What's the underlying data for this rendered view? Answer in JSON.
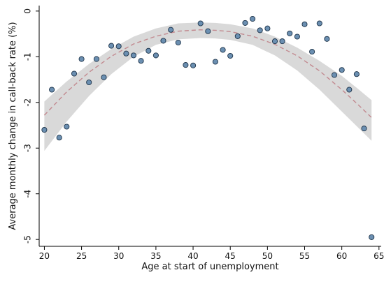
{
  "chart_data": {
    "type": "scatter",
    "title": "",
    "xlabel": "Age at start of unemployment",
    "ylabel": "Average monthly change in call-back rate (%)",
    "xlim": [
      19.3,
      65.3
    ],
    "ylim": [
      -5.15,
      0.12
    ],
    "x_ticks": [
      20,
      25,
      30,
      35,
      40,
      45,
      50,
      55,
      60,
      65
    ],
    "y_ticks": [
      0,
      -1,
      -2,
      -3,
      -4,
      -5
    ],
    "grid": false,
    "legend": "none",
    "points": [
      {
        "x": 20,
        "y": -2.6
      },
      {
        "x": 21,
        "y": -1.72
      },
      {
        "x": 22,
        "y": -2.77
      },
      {
        "x": 23,
        "y": -2.53
      },
      {
        "x": 24,
        "y": -1.37
      },
      {
        "x": 25,
        "y": -1.05
      },
      {
        "x": 26,
        "y": -1.56
      },
      {
        "x": 27,
        "y": -1.05
      },
      {
        "x": 28,
        "y": -1.45
      },
      {
        "x": 29,
        "y": -0.76
      },
      {
        "x": 30,
        "y": -0.77
      },
      {
        "x": 31,
        "y": -0.93
      },
      {
        "x": 32,
        "y": -0.97
      },
      {
        "x": 33,
        "y": -1.09
      },
      {
        "x": 34,
        "y": -0.87
      },
      {
        "x": 35,
        "y": -0.97
      },
      {
        "x": 36,
        "y": -0.65
      },
      {
        "x": 37,
        "y": -0.41
      },
      {
        "x": 38,
        "y": -0.69
      },
      {
        "x": 39,
        "y": -1.18
      },
      {
        "x": 40,
        "y": -1.19
      },
      {
        "x": 41,
        "y": -0.27
      },
      {
        "x": 42,
        "y": -0.44
      },
      {
        "x": 43,
        "y": -1.11
      },
      {
        "x": 44,
        "y": -0.85
      },
      {
        "x": 45,
        "y": -0.98
      },
      {
        "x": 46,
        "y": -0.55
      },
      {
        "x": 47,
        "y": -0.26
      },
      {
        "x": 48,
        "y": -0.17
      },
      {
        "x": 49,
        "y": -0.42
      },
      {
        "x": 50,
        "y": -0.38
      },
      {
        "x": 51,
        "y": -0.66
      },
      {
        "x": 52,
        "y": -0.66
      },
      {
        "x": 53,
        "y": -0.49
      },
      {
        "x": 54,
        "y": -0.56
      },
      {
        "x": 55,
        "y": -0.29
      },
      {
        "x": 56,
        "y": -0.89
      },
      {
        "x": 57,
        "y": -0.27
      },
      {
        "x": 58,
        "y": -0.61
      },
      {
        "x": 59,
        "y": -1.4
      },
      {
        "x": 60,
        "y": -1.29
      },
      {
        "x": 61,
        "y": -1.72
      },
      {
        "x": 62,
        "y": -1.38
      },
      {
        "x": 63,
        "y": -2.57
      },
      {
        "x": 64,
        "y": -4.95
      }
    ],
    "fit_line": {
      "type": "quadratic",
      "style": "dashed",
      "x": [
        20,
        23,
        26,
        29,
        32,
        35,
        38,
        41,
        43,
        45,
        48,
        51,
        54,
        57,
        60,
        62,
        64
      ],
      "y": [
        -2.28,
        -1.77,
        -1.34,
        -0.99,
        -0.72,
        -0.55,
        -0.44,
        -0.41,
        -0.42,
        -0.45,
        -0.55,
        -0.73,
        -0.98,
        -1.31,
        -1.72,
        -2.02,
        -2.33
      ]
    },
    "confidence_band": {
      "x": [
        20,
        23,
        26,
        29,
        32,
        35,
        38,
        41,
        43,
        45,
        48,
        51,
        54,
        57,
        60,
        62,
        64
      ],
      "upper": [
        -1.98,
        -1.54,
        -1.16,
        -0.83,
        -0.56,
        -0.38,
        -0.27,
        -0.25,
        -0.26,
        -0.29,
        -0.38,
        -0.56,
        -0.8,
        -1.09,
        -1.42,
        -1.68,
        -1.95
      ],
      "lower": [
        -3.06,
        -2.42,
        -1.86,
        -1.38,
        -1.0,
        -0.74,
        -0.62,
        -0.59,
        -0.6,
        -0.63,
        -0.74,
        -0.97,
        -1.3,
        -1.72,
        -2.2,
        -2.52,
        -2.84
      ]
    },
    "colors": {
      "point_fill": "#6b8fb1",
      "point_stroke": "#1d3349",
      "fit_line": "#c28a90",
      "band": "#d9d9d9",
      "axis": "#000000"
    }
  }
}
